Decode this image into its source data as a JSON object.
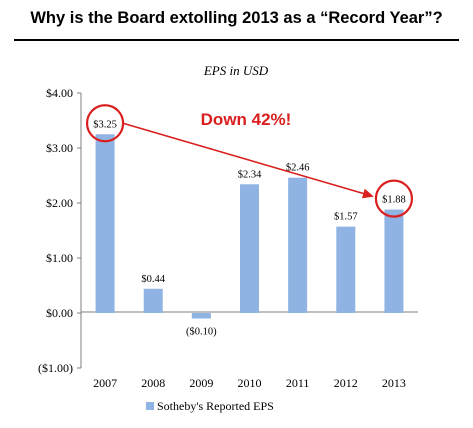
{
  "page_title": "Why is the Board extolling 2013 as a “Record Year”?",
  "colors": {
    "bar": "#8fb4e3",
    "annotation": "#d9201f",
    "axis": "#7f7f7f",
    "text": "#000000"
  },
  "chart_data": {
    "type": "bar",
    "title": "EPS in USD",
    "xlabel": "",
    "ylabel": "",
    "categories": [
      "2007",
      "2008",
      "2009",
      "2010",
      "2011",
      "2012",
      "2013"
    ],
    "series": [
      {
        "name": "Sotheby's Reported EPS",
        "values": [
          3.25,
          0.44,
          -0.1,
          2.34,
          2.46,
          1.57,
          1.88
        ]
      }
    ],
    "data_labels": [
      "$3.25",
      "$0.44",
      "($0.10)",
      "$2.34",
      "$2.46",
      "$1.57",
      "$1.88"
    ],
    "ylim": [
      -1,
      4
    ],
    "yticks": [
      4,
      3,
      2,
      1,
      0,
      -1
    ],
    "ytick_labels": [
      "$4.00",
      "$3.00",
      "$2.00",
      "$1.00",
      "$0.00",
      "($1.00)"
    ],
    "grid": false,
    "legend_position": "bottom",
    "annotation": {
      "text": "Down 42%!",
      "from_category": "2007",
      "to_category": "2013",
      "circled": [
        "2007",
        "2013"
      ]
    }
  }
}
